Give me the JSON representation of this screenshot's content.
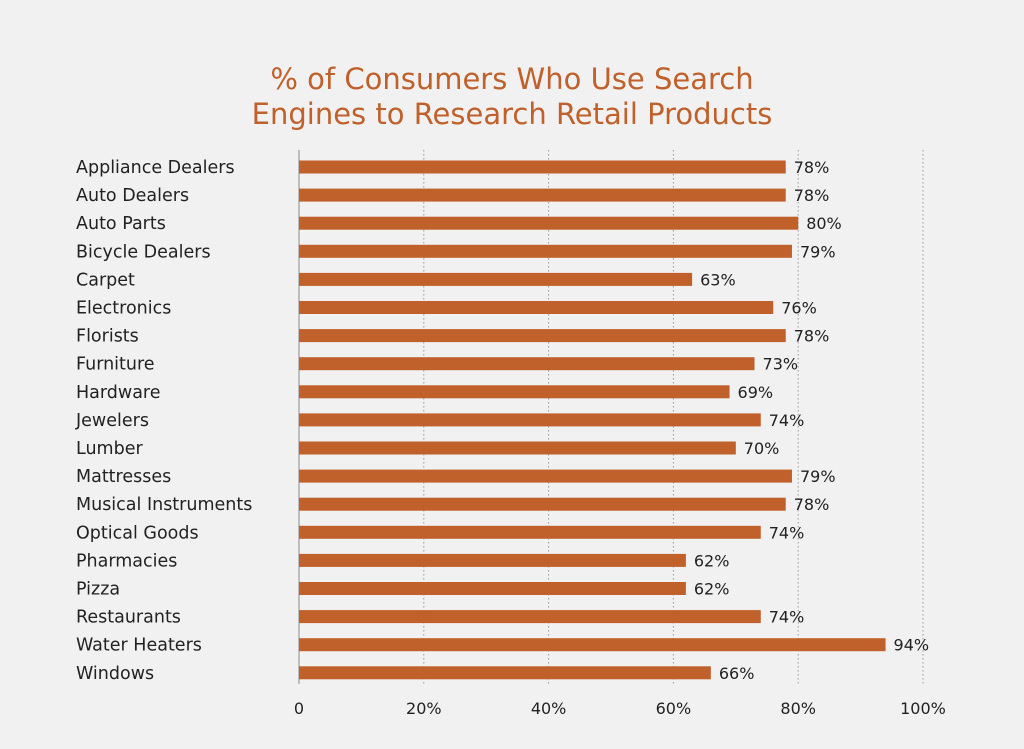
{
  "chart_data": {
    "type": "bar",
    "orientation": "horizontal",
    "title_lines": [
      "% of Consumers Who Use Search",
      "Engines to Research Retail Products"
    ],
    "categories": [
      "Appliance Dealers",
      "Auto Dealers",
      "Auto Parts",
      "Bicycle Dealers",
      "Carpet",
      "Electronics",
      "Florists",
      "Furniture",
      "Hardware",
      "Jewelers",
      "Lumber",
      "Mattresses",
      "Musical Instruments",
      "Optical Goods",
      "Pharmacies",
      "Pizza",
      "Restaurants",
      "Water Heaters",
      "Windows"
    ],
    "values": [
      78,
      78,
      80,
      79,
      63,
      76,
      78,
      73,
      69,
      74,
      70,
      79,
      78,
      74,
      62,
      62,
      74,
      94,
      66
    ],
    "value_labels": [
      "78%",
      "78%",
      "80%",
      "79%",
      "63%",
      "76%",
      "78%",
      "73%",
      "69%",
      "74%",
      "70%",
      "79%",
      "78%",
      "74%",
      "62%",
      "62%",
      "74%",
      "94%",
      "66%"
    ],
    "x_ticks": [
      0,
      20,
      40,
      60,
      80,
      100
    ],
    "x_tick_labels": [
      "0",
      "20%",
      "40%",
      "60%",
      "80%",
      "100%"
    ],
    "xlim": [
      0,
      100
    ],
    "grid": "vertical dotted",
    "legend": "none",
    "bar_color": "#c0602a",
    "title_color": "#c0602a",
    "text_color": "#222222",
    "background_color": "#f1f1f1"
  }
}
